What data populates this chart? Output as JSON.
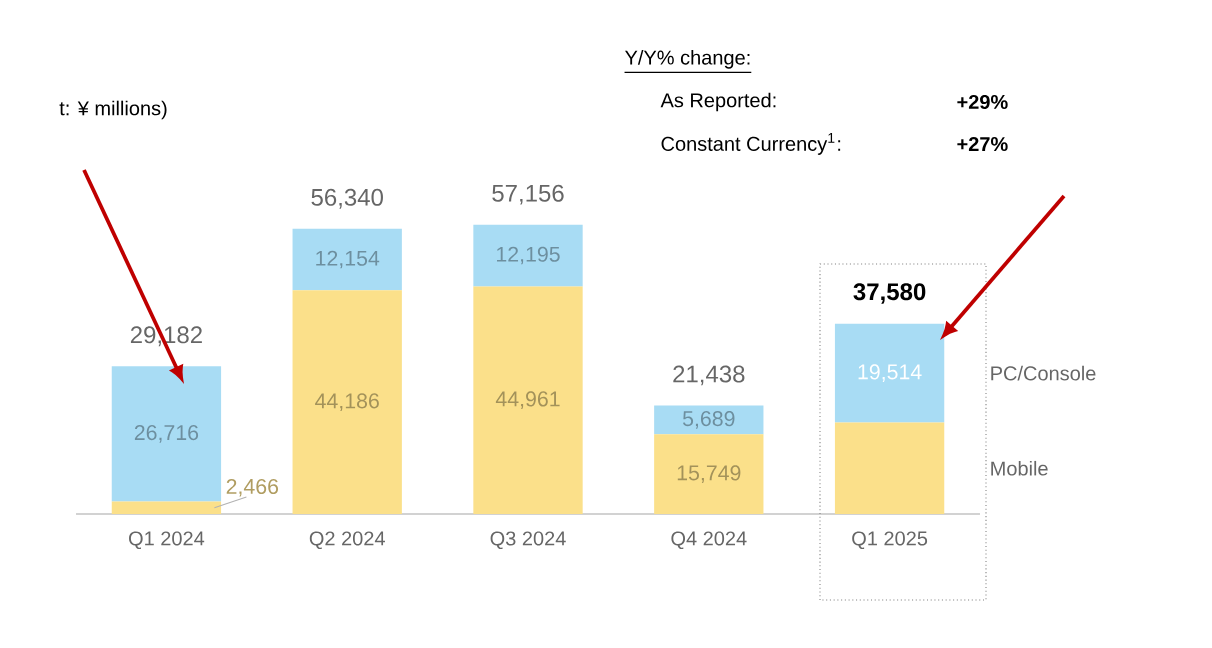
{
  "chart_data": {
    "type": "bar",
    "stacked": true,
    "categories": [
      "Q1 2024",
      "Q2 2024",
      "Q3 2024",
      "Q4 2024",
      "Q1 2025"
    ],
    "series": [
      {
        "name": "Mobile",
        "color": "#fbe08a",
        "values": [
          2466,
          44186,
          44961,
          15749,
          18066
        ],
        "value_labels": [
          "2,466",
          "44,186",
          "44,961",
          "15,749",
          null
        ]
      },
      {
        "name": "PC/Console",
        "color": "#a8dcf4",
        "values": [
          26716,
          12154,
          12195,
          5689,
          19514
        ],
        "value_labels": [
          "26,716",
          "12,154",
          "12,195",
          "5,689",
          "19,514"
        ]
      }
    ],
    "totals": [
      "29,182",
      "56,340",
      "57,156",
      "21,438",
      "37,580"
    ],
    "annotations": [
      "t: ¥ millions)",
      "Y/Y% change:",
      "As Reported:",
      "+29%",
      "Constant Currency$^{1}$:",
      "+27%"
    ]
  }
}
